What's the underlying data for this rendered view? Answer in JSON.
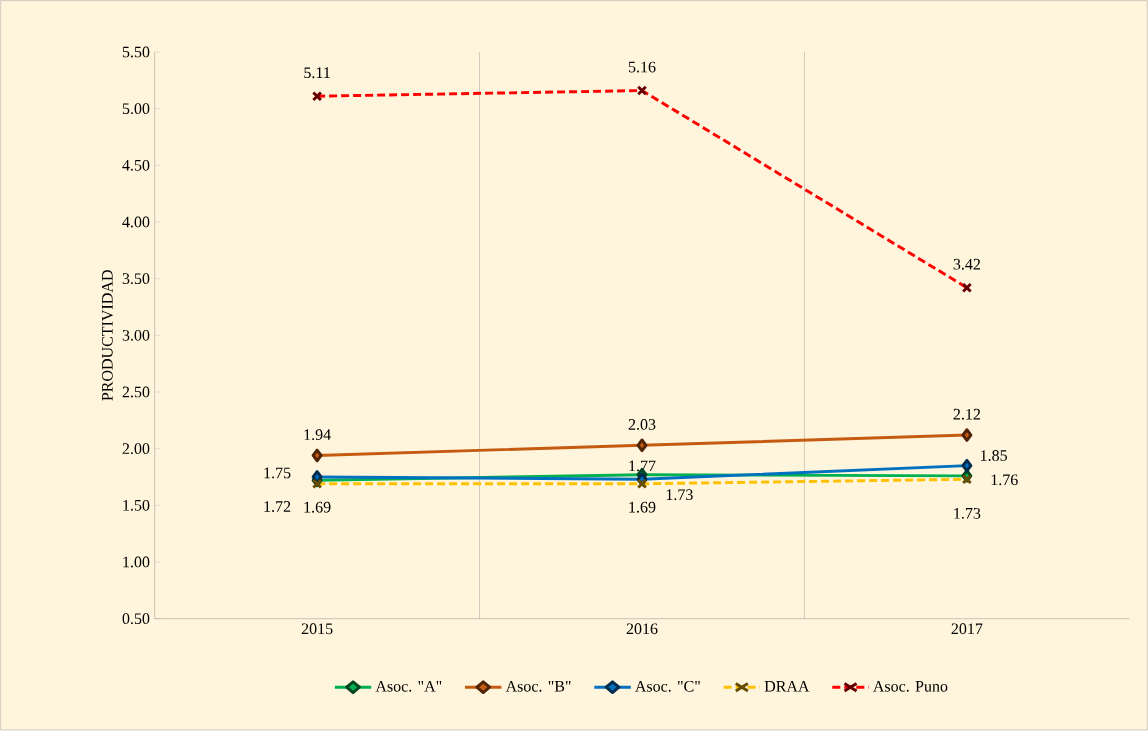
{
  "chart_data": {
    "type": "line",
    "ylabel": "PRODUCTIVIDAD",
    "categories": [
      "2015",
      "2016",
      "2017"
    ],
    "series": [
      {
        "name": "Asoc. \"A\"",
        "color": "#00b050",
        "values": [
          1.72,
          1.77,
          1.76
        ],
        "marker": "diamond",
        "line_style": "solid"
      },
      {
        "name": "Asoc. \"B\"",
        "color": "#c55a11",
        "values": [
          1.94,
          2.03,
          2.12
        ],
        "marker": "diamond",
        "line_style": "solid"
      },
      {
        "name": "Asoc. \"C\"",
        "color": "#0070c0",
        "values": [
          1.75,
          1.73,
          1.85
        ],
        "marker": "diamond",
        "line_style": "solid"
      },
      {
        "name": "DRAA",
        "color": "#ffc000",
        "values": [
          1.69,
          1.69,
          1.73
        ],
        "marker": "cross",
        "line_style": "dashed"
      },
      {
        "name": "Asoc. Puno",
        "color": "#ff0000",
        "values": [
          5.11,
          5.16,
          3.42
        ],
        "marker": "cross",
        "line_style": "dashed"
      }
    ],
    "ylim": [
      0.5,
      5.5
    ],
    "yticks": [
      {
        "value": 0.5,
        "label": "0.50"
      },
      {
        "value": 1.0,
        "label": "1.00"
      },
      {
        "value": 1.5,
        "label": "1.50"
      },
      {
        "value": 2.0,
        "label": "2.00"
      },
      {
        "value": 2.5,
        "label": "2.50"
      },
      {
        "value": 3.0,
        "label": "3.00"
      },
      {
        "value": 3.5,
        "label": "3.50"
      },
      {
        "value": 4.0,
        "label": "4.00"
      },
      {
        "value": 4.5,
        "label": "4.50"
      },
      {
        "value": 5.0,
        "label": "5.00"
      },
      {
        "value": 5.5,
        "label": "5.50"
      }
    ],
    "grid": "x",
    "legend": "bottom",
    "data_labels": true
  }
}
